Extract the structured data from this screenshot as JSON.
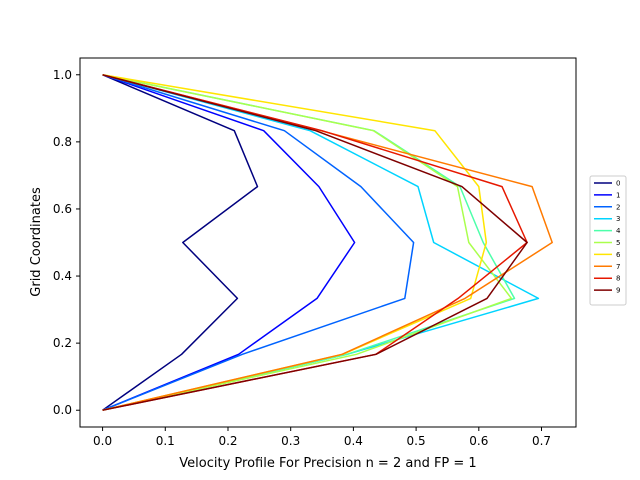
{
  "chart_data": {
    "type": "line",
    "title": "",
    "xlabel": "Velocity Profile For Precision n = 2 and FP = 1",
    "ylabel": "Grid Coordinates",
    "xlim": [
      -0.036,
      0.755
    ],
    "ylim": [
      -0.05,
      1.05
    ],
    "xticks": [
      0.0,
      0.1,
      0.2,
      0.3,
      0.4,
      0.5,
      0.6,
      0.7
    ],
    "xtick_labels": [
      "0.0",
      "0.1",
      "0.2",
      "0.3",
      "0.4",
      "0.5",
      "0.6",
      "0.7"
    ],
    "yticks": [
      0.0,
      0.2,
      0.4,
      0.6,
      0.8,
      1.0
    ],
    "ytick_labels": [
      "0.0",
      "0.2",
      "0.4",
      "0.6",
      "0.8",
      "1.0"
    ],
    "grid": false,
    "legend_position": "right",
    "y": [
      0.0,
      0.1667,
      0.3333,
      0.5,
      0.6667,
      0.8333,
      1.0
    ],
    "series": [
      {
        "name": "0",
        "color": "#00007f",
        "x": [
          0.0,
          0.126,
          0.215,
          0.128,
          0.247,
          0.21,
          0.0
        ]
      },
      {
        "name": "1",
        "color": "#0000ff",
        "x": [
          0.0,
          0.217,
          0.342,
          0.402,
          0.345,
          0.257,
          0.0
        ]
      },
      {
        "name": "2",
        "color": "#0063ff",
        "x": [
          0.0,
          0.223,
          0.482,
          0.496,
          0.412,
          0.29,
          0.0
        ]
      },
      {
        "name": "3",
        "color": "#00d4ff",
        "x": [
          0.0,
          0.39,
          0.695,
          0.528,
          0.503,
          0.331,
          0.0
        ]
      },
      {
        "name": "4",
        "color": "#4dffaa",
        "x": [
          0.0,
          0.39,
          0.657,
          0.607,
          0.57,
          0.433,
          0.0
        ]
      },
      {
        "name": "5",
        "color": "#aaff4d",
        "x": [
          0.0,
          0.405,
          0.652,
          0.584,
          0.566,
          0.432,
          0.0
        ]
      },
      {
        "name": "6",
        "color": "#ffe500",
        "x": [
          0.0,
          0.383,
          0.587,
          0.612,
          0.6,
          0.53,
          0.0
        ]
      },
      {
        "name": "7",
        "color": "#ff7a00",
        "x": [
          0.0,
          0.382,
          0.578,
          0.717,
          0.685,
          0.348,
          0.0
        ]
      },
      {
        "name": "8",
        "color": "#e61800",
        "x": [
          0.0,
          0.436,
          0.567,
          0.677,
          0.637,
          0.35,
          0.0
        ]
      },
      {
        "name": "9",
        "color": "#7f0000",
        "x": [
          0.0,
          0.436,
          0.613,
          0.677,
          0.573,
          0.34,
          0.0
        ]
      }
    ]
  }
}
